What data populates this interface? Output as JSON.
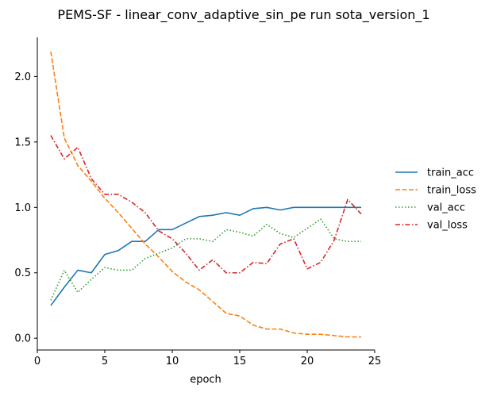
{
  "chart_data": {
    "type": "line",
    "title": "PEMS-SF - linear_conv_adaptive_sin_pe run sota_version_1",
    "xlabel": "epoch",
    "ylabel": "",
    "xlim": [
      0,
      25
    ],
    "ylim": [
      -0.09,
      2.3
    ],
    "xticks": [
      0,
      5,
      10,
      15,
      20,
      25
    ],
    "yticks": [
      0.0,
      0.5,
      1.0,
      1.5,
      2.0
    ],
    "ytick_labels": [
      "0.0",
      "0.5",
      "1.0",
      "1.5",
      "2.0"
    ],
    "x": [
      1,
      2,
      3,
      4,
      5,
      6,
      7,
      8,
      9,
      10,
      11,
      12,
      13,
      14,
      15,
      16,
      17,
      18,
      19,
      20,
      21,
      22,
      23,
      24
    ],
    "legend_position": "right, outside plot area",
    "grid": false,
    "series": [
      {
        "name": "train_acc",
        "color": "#1f77b4",
        "style": "solid",
        "values": [
          0.25,
          0.39,
          0.52,
          0.5,
          0.64,
          0.67,
          0.74,
          0.74,
          0.83,
          0.83,
          0.88,
          0.93,
          0.94,
          0.96,
          0.94,
          0.99,
          1.0,
          0.98,
          1.0,
          1.0,
          1.0,
          1.0,
          1.0,
          1.0
        ]
      },
      {
        "name": "train_loss",
        "color": "#ff7f0e",
        "style": "dashed",
        "values": [
          2.19,
          1.53,
          1.32,
          1.2,
          1.07,
          0.96,
          0.84,
          0.72,
          0.62,
          0.51,
          0.43,
          0.37,
          0.28,
          0.19,
          0.17,
          0.1,
          0.07,
          0.07,
          0.04,
          0.03,
          0.03,
          0.02,
          0.01,
          0.01
        ]
      },
      {
        "name": "val_acc",
        "color": "#2ca02c",
        "style": "dotted",
        "values": [
          0.29,
          0.52,
          0.35,
          0.45,
          0.54,
          0.52,
          0.52,
          0.61,
          0.65,
          0.69,
          0.76,
          0.76,
          0.74,
          0.83,
          0.81,
          0.78,
          0.87,
          0.8,
          0.77,
          0.84,
          0.91,
          0.76,
          0.74,
          0.74
        ]
      },
      {
        "name": "val_loss",
        "color": "#d62728",
        "style": "dashdot",
        "values": [
          1.55,
          1.37,
          1.46,
          1.22,
          1.1,
          1.1,
          1.04,
          0.96,
          0.82,
          0.76,
          0.65,
          0.52,
          0.6,
          0.5,
          0.5,
          0.58,
          0.57,
          0.72,
          0.76,
          0.53,
          0.58,
          0.75,
          1.06,
          0.95
        ]
      }
    ]
  }
}
